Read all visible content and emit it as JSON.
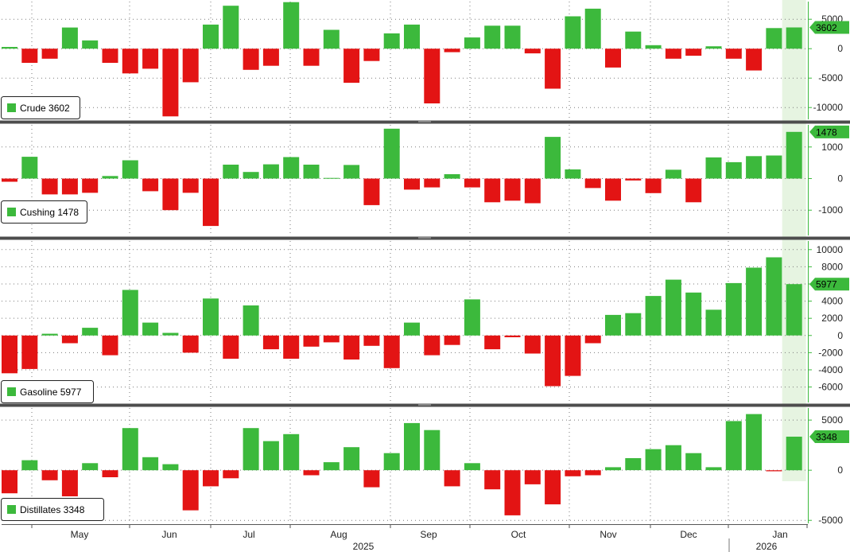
{
  "colors": {
    "positive": "#3cb93c",
    "negative": "#e31414",
    "highlight": "#e6f4e1",
    "grid": "#7a7a7a",
    "axis": "#3cb93c",
    "separator": "#4d4d4d"
  },
  "x_axis": {
    "months": [
      "May",
      "Jun",
      "Jul",
      "Aug",
      "Sep",
      "Oct",
      "Nov",
      "Dec",
      "Jan"
    ],
    "years": [
      "2025",
      "2026"
    ]
  },
  "chart_data": [
    {
      "type": "bar",
      "name": "Crude",
      "legend": "Crude 3602",
      "last_label": "3602",
      "ylim": [
        -12000,
        8000
      ],
      "ticks": [
        5000,
        0,
        -5000,
        -10000
      ],
      "tick_labels": [
        "5000",
        "0",
        "-5000",
        "-10000"
      ],
      "values": [
        300,
        -2400,
        -1700,
        3600,
        1400,
        -2400,
        -4200,
        -3400,
        -11500,
        -5700,
        4100,
        7300,
        -3600,
        -2900,
        7900,
        -2900,
        3200,
        -5800,
        -2100,
        2600,
        4100,
        -9300,
        -600,
        1900,
        3900,
        3900,
        -800,
        -6800,
        5500,
        6800,
        -3200,
        2900,
        600,
        -1700,
        -1200,
        400,
        -1700,
        -3700,
        3500,
        3602
      ]
    },
    {
      "type": "bar",
      "name": "Cushing",
      "legend": "Cushing 1478",
      "last_label": "1478",
      "ylim": [
        -1800,
        1700
      ],
      "ticks": [
        1000,
        0,
        -1000
      ],
      "tick_labels": [
        "1000",
        "0",
        "-1000"
      ],
      "values": [
        -100,
        690,
        -500,
        -500,
        -450,
        80,
        580,
        -400,
        -1000,
        -450,
        -1500,
        440,
        210,
        450,
        680,
        440,
        20,
        430,
        -840,
        1580,
        -350,
        -280,
        140,
        -280,
        -750,
        -700,
        -780,
        1320,
        290,
        -300,
        -700,
        -60,
        -460,
        280,
        -750,
        670,
        520,
        710,
        730,
        1478
      ]
    },
    {
      "type": "bar",
      "name": "Gasoline",
      "legend": "Gasoline 5977",
      "last_label": "5977",
      "ylim": [
        -7800,
        11000
      ],
      "ticks": [
        10000,
        8000,
        6000,
        4000,
        2000,
        0,
        -2000,
        -4000,
        -6000
      ],
      "tick_labels": [
        "10000",
        "8000",
        "6000",
        "4000",
        "2000",
        "0",
        "-2000",
        "-4000",
        "-6000"
      ],
      "values": [
        -4400,
        -3900,
        200,
        -900,
        900,
        -2300,
        5300,
        1500,
        300,
        -2000,
        4300,
        -2700,
        3500,
        -1600,
        -2700,
        -1300,
        -800,
        -2800,
        -1200,
        -3800,
        1500,
        -2300,
        -1100,
        4200,
        -1600,
        -200,
        -2100,
        -5900,
        -4700,
        -900,
        2400,
        2600,
        4600,
        6500,
        5000,
        3000,
        6100,
        7900,
        9100,
        5977
      ]
    },
    {
      "type": "bar",
      "name": "Distillates",
      "legend": "Distillates 3348",
      "last_label": "3348",
      "ylim": [
        -5300,
        6200
      ],
      "ticks": [
        5000,
        0,
        -5000
      ],
      "tick_labels": [
        "5000",
        "0",
        "-5000"
      ],
      "values": [
        -2300,
        1000,
        -1000,
        -2600,
        700,
        -700,
        4200,
        1300,
        600,
        -4000,
        -1600,
        -800,
        4200,
        2900,
        3600,
        -500,
        800,
        2300,
        -1700,
        1700,
        4700,
        4000,
        -1600,
        700,
        -1900,
        -4500,
        -1400,
        -3400,
        -600,
        -500,
        300,
        1200,
        2100,
        2500,
        1700,
        300,
        4900,
        5600,
        -100,
        3348
      ]
    }
  ]
}
